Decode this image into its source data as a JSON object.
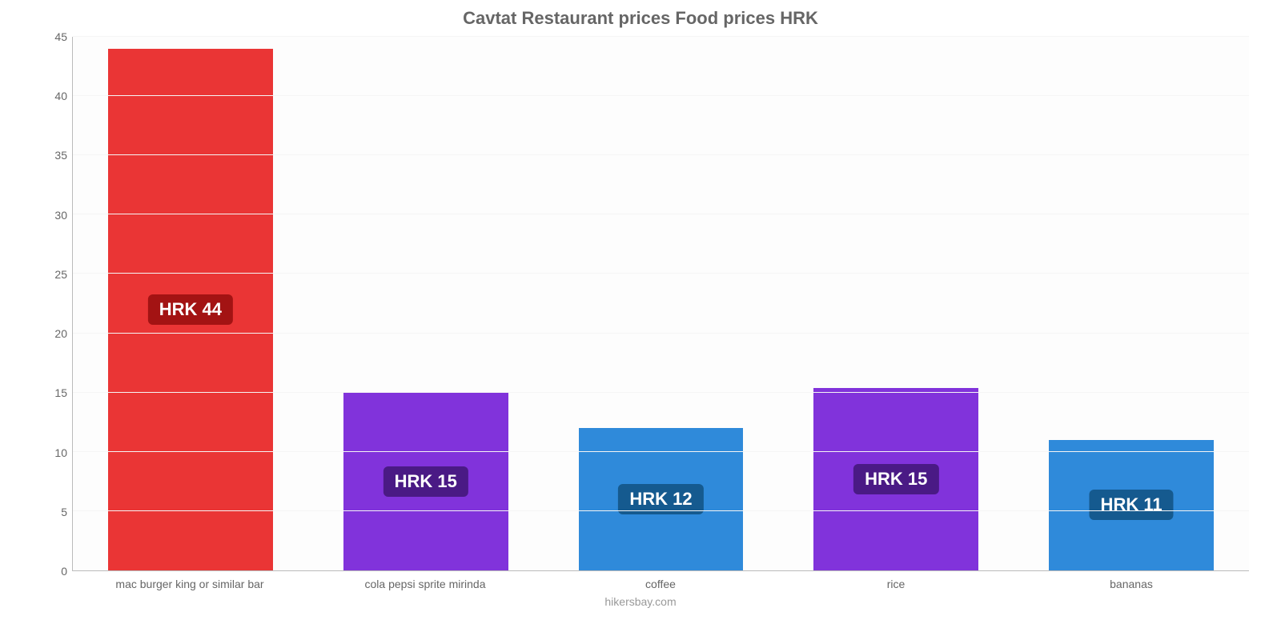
{
  "chart": {
    "type": "bar",
    "title": "Cavtat Restaurant prices Food prices HRK",
    "title_fontsize": 22,
    "title_color": "#666666",
    "background_color": "#fdfdfd",
    "grid_color": "#f5f5f5",
    "axis_color": "#bbbbbb",
    "tick_label_color": "#666666",
    "tick_fontsize": 14,
    "label_fontsize": 14,
    "bar_width": 0.7,
    "ylim": [
      0,
      45
    ],
    "ytick_step": 5,
    "yticks": [
      0,
      5,
      10,
      15,
      20,
      25,
      30,
      35,
      40,
      45
    ],
    "categories": [
      "mac burger king or similar bar",
      "cola pepsi sprite mirinda",
      "coffee",
      "rice",
      "bananas"
    ],
    "values": [
      44,
      15,
      12,
      15.4,
      11
    ],
    "value_labels": [
      "HRK 44",
      "HRK 15",
      "HRK 12",
      "HRK 15",
      "HRK 11"
    ],
    "bar_colors": [
      "#ea3535",
      "#8133db",
      "#2f8ada",
      "#8133db",
      "#2f8ada"
    ],
    "badge_colors": [
      "#a31313",
      "#4a1a85",
      "#155a8f",
      "#4a1a85",
      "#155a8f"
    ],
    "badge_text_color": "#ffffff",
    "badge_fontsize": 22,
    "attribution": "hikersbay.com",
    "attribution_color": "#999999"
  }
}
